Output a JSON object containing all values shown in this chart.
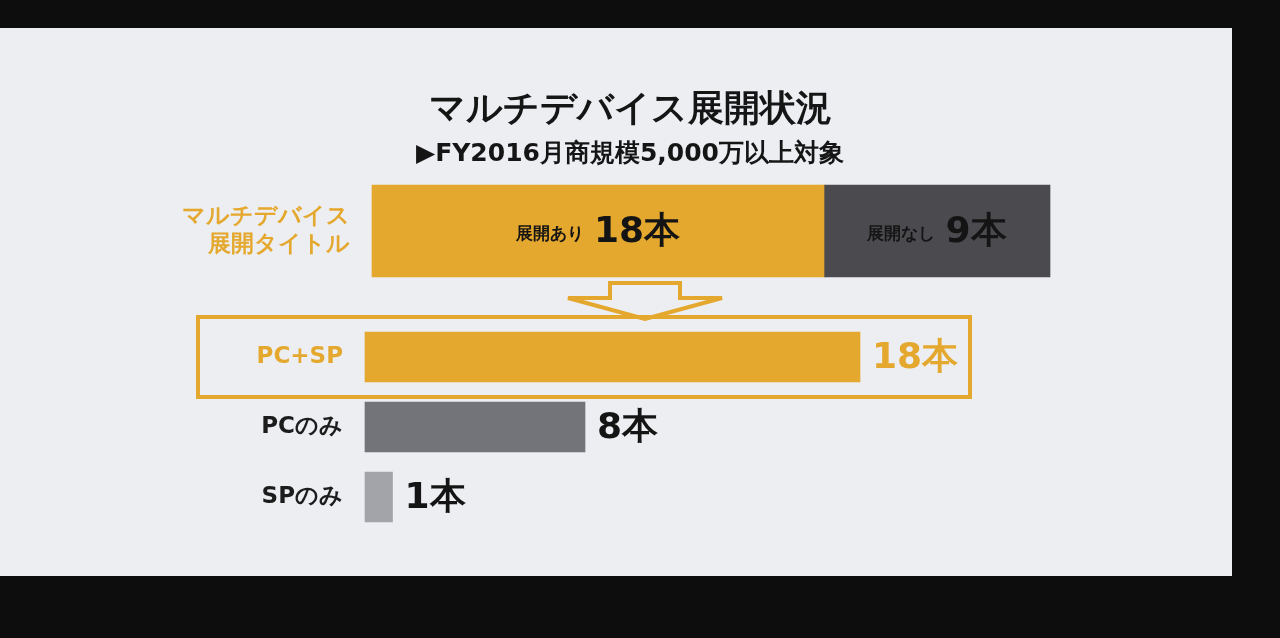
{
  "chart_data": [
    {
      "type": "bar",
      "title": "マルチデバイス展開状況",
      "subtitle": "▶FY2016月商規模5,000万以上対象",
      "orientation": "horizontal",
      "stacked": true,
      "categories": [
        "マルチデバイス展開タイトル"
      ],
      "series": [
        {
          "name": "展開あり",
          "color": "#e5a82e",
          "values": [
            18
          ],
          "value_labels": [
            "18本"
          ]
        },
        {
          "name": "展開なし",
          "color": "#4b4b4f",
          "values": [
            9
          ],
          "value_labels": [
            "9本"
          ]
        }
      ],
      "tick_labels": "y"
    },
    {
      "type": "bar",
      "orientation": "horizontal",
      "categories": [
        "PC+SP",
        "PCのみ",
        "SPのみ"
      ],
      "values": [
        18,
        8,
        1
      ],
      "colors": [
        "#e5a82e",
        "#737479",
        "#a2a4aa"
      ],
      "value_labels": [
        "18本",
        "8本",
        "1本"
      ],
      "tick_labels": "y"
    }
  ]
}
